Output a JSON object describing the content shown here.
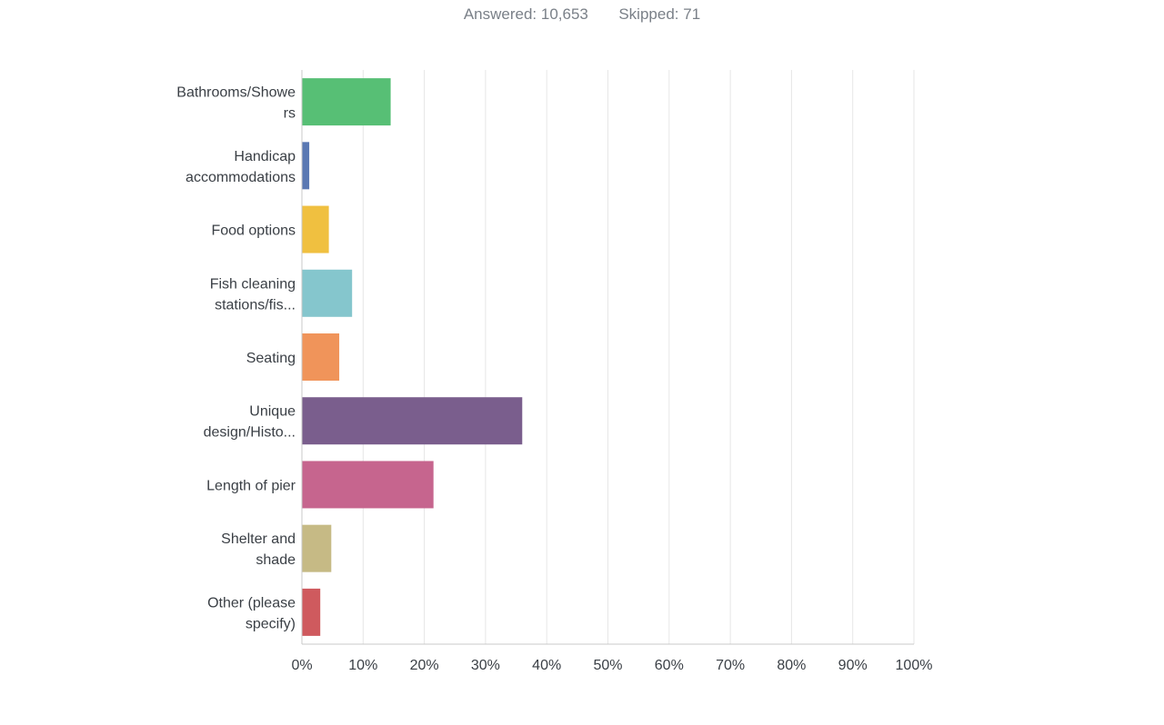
{
  "summary": {
    "answered_label": "Answered:",
    "answered_value": "10,653",
    "skipped_label": "Skipped:",
    "skipped_value": "71"
  },
  "chart_data": {
    "type": "bar",
    "orientation": "horizontal",
    "title": "",
    "xlabel": "",
    "ylabel": "",
    "xlim": [
      0,
      100
    ],
    "grid": true,
    "categories": [
      [
        "Bathrooms/Showe",
        "rs"
      ],
      [
        "Handicap",
        "accommodations"
      ],
      [
        "Food options"
      ],
      [
        "Fish cleaning",
        "stations/fis..."
      ],
      [
        "Seating"
      ],
      [
        "Unique",
        "design/Histo..."
      ],
      [
        "Length of pier"
      ],
      [
        "Shelter and",
        "shade"
      ],
      [
        "Other (please",
        "specify)"
      ]
    ],
    "values": [
      14.5,
      1.2,
      4.4,
      8.2,
      6.1,
      36.0,
      21.5,
      4.8,
      3.0
    ],
    "colors": [
      "#57bf75",
      "#5a78b3",
      "#f0c040",
      "#85c6cd",
      "#f0945a",
      "#7a5e8d",
      "#c6658e",
      "#c6ba85",
      "#cf5a5e"
    ],
    "ticks": [
      "0%",
      "10%",
      "20%",
      "30%",
      "40%",
      "50%",
      "60%",
      "70%",
      "80%",
      "90%",
      "100%"
    ]
  }
}
